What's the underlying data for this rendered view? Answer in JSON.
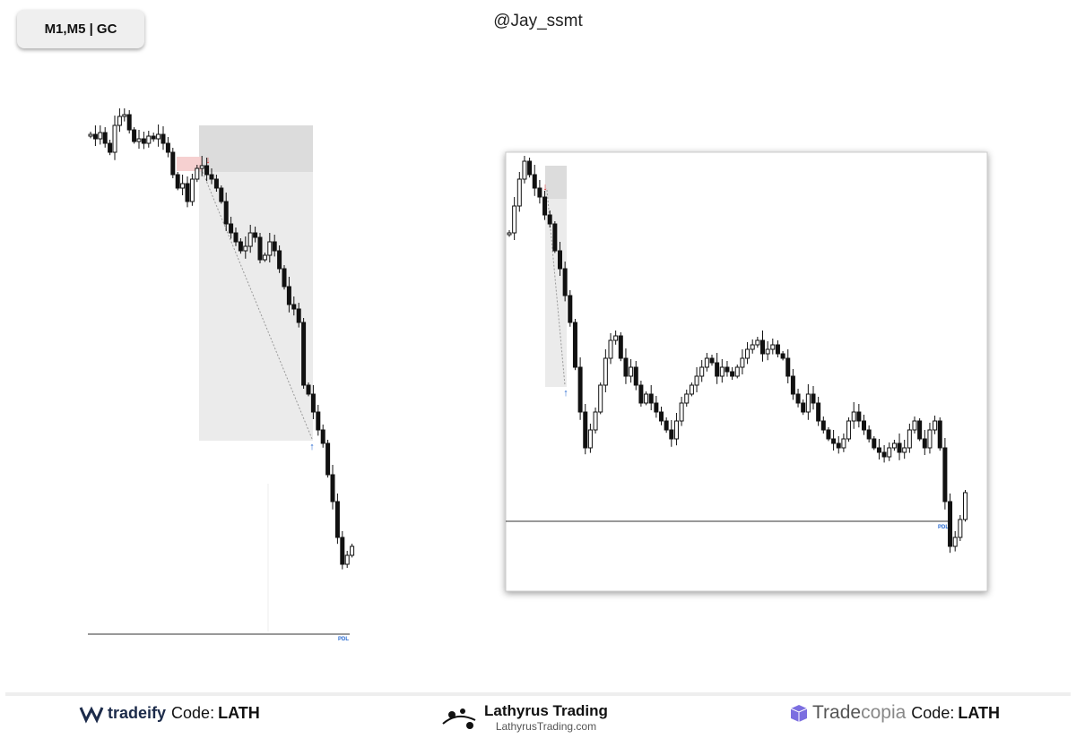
{
  "header": {
    "badge": "M1,M5 | GC",
    "handle": "@Jay_ssmt"
  },
  "charts": [
    {
      "level_label": "PDL"
    },
    {
      "level_label": "PDL"
    }
  ],
  "footer": {
    "left": {
      "brand": "tradeify",
      "code_label": "Code:",
      "code": "LATH"
    },
    "center": {
      "name": "Lathyrus Trading",
      "url": "LathyrusTrading.com"
    },
    "right": {
      "brand_a": "Trade",
      "brand_b": "copia",
      "code_label": "Code:",
      "code": "LATH"
    }
  }
}
